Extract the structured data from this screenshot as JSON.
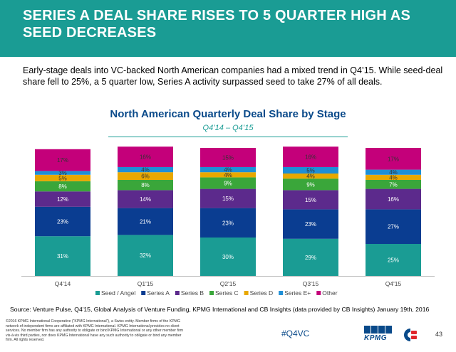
{
  "header": {
    "title": "SERIES A DEAL SHARE RISES TO 5 QUARTER HIGH AS SEED DECREASES",
    "bg_color": "#1a9c94"
  },
  "intro": "Early-stage deals into VC-backed North American companies had a mixed trend in Q4’15. While seed-deal share fell to 25%, a 5 quarter low, Series A activity surpassed seed to take 27% of all deals.",
  "chart_data": {
    "type": "bar",
    "stacked": true,
    "title": "North American Quarterly Deal Share by Stage",
    "subtitle": "Q4’14 – Q4’15",
    "categories": [
      "Q4'14",
      "Q1'15",
      "Q2'15",
      "Q3'15",
      "Q4'15"
    ],
    "ylim": [
      0,
      100
    ],
    "grid": false,
    "legend_position": "bottom",
    "series": [
      {
        "name": "Seed / Angel",
        "color": "#1a9c94",
        "values": [
          31,
          32,
          30,
          29,
          25
        ],
        "labels": [
          "31%",
          "32%",
          "30%",
          "29%",
          "25%"
        ]
      },
      {
        "name": "Series A",
        "color": "#0a3d91",
        "values": [
          23,
          21,
          23,
          23,
          27
        ],
        "labels": [
          "23%",
          "21%",
          "23%",
          "23%",
          "27%"
        ]
      },
      {
        "name": "Series B",
        "color": "#5c2a8c",
        "values": [
          12,
          14,
          15,
          15,
          16
        ],
        "labels": [
          "12%",
          "14%",
          "15%",
          "15%",
          "16%"
        ]
      },
      {
        "name": "Series C",
        "color": "#3aa63a",
        "values": [
          8,
          8,
          9,
          9,
          7
        ],
        "labels": [
          "8%",
          "8%",
          "9%",
          "9%",
          "7%"
        ]
      },
      {
        "name": "Series D",
        "color": "#e8a800",
        "values": [
          5,
          6,
          4,
          4,
          4
        ],
        "labels": [
          "5%",
          "6%",
          "4%",
          "4%",
          "4%"
        ]
      },
      {
        "name": "Series E+",
        "color": "#1e8fd6",
        "values": [
          3,
          4,
          4,
          5,
          4
        ],
        "labels": [
          "3%",
          "4%",
          "4%",
          "5%",
          "4%"
        ]
      },
      {
        "name": "Other",
        "color": "#c4007a",
        "values": [
          17,
          16,
          15,
          16,
          17
        ],
        "labels": [
          "17%",
          "16%",
          "15%",
          "16%",
          "17%"
        ]
      }
    ]
  },
  "source": "Source: Venture Pulse, Q4'15, Global Analysis of Venture Funding, KPMG International and CB Insights (data provided by CB Insights) January 19th, 2016",
  "legal": "©2016 KPMG International Cooperative (“KPMG International”), a Swiss entity. Member firms of the KPMG network of independent firms are affiliated with KPMG International. KPMG International provides no client services. No member firm has any authority to obligate or bind KPMG International or any other member firm vis-à-vis third parties, nor does KPMG International have any such authority to obligate or bind any member firm. All rights reserved.",
  "footer": {
    "hashtag": "#Q4VC",
    "kpmg_logo_text": "KPMG",
    "page_number": "43"
  }
}
